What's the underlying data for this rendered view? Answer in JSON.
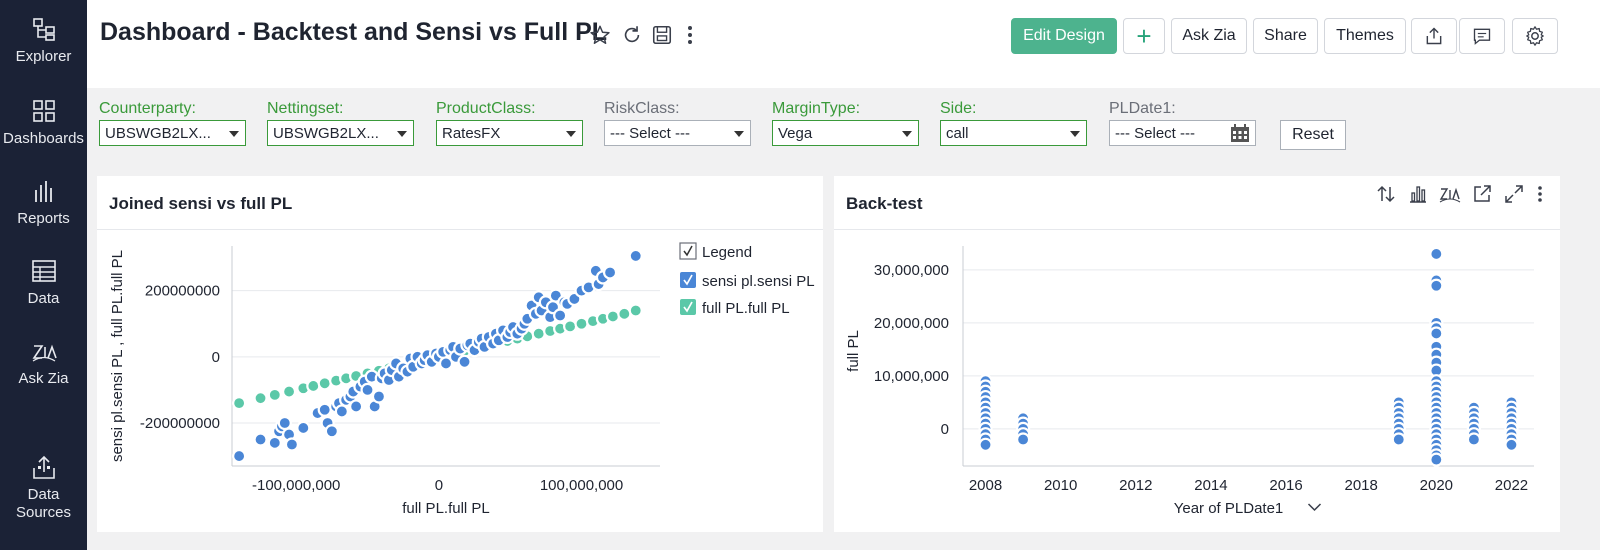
{
  "sidebar": {
    "items": [
      {
        "label": "Explorer",
        "icon": "explorer-icon"
      },
      {
        "label": "Dashboards",
        "icon": "dashboards-icon"
      },
      {
        "label": "Reports",
        "icon": "reports-icon"
      },
      {
        "label": "Data",
        "icon": "data-icon"
      },
      {
        "label": "Ask Zia",
        "icon": "ask-zia-icon"
      },
      {
        "label": "Data Sources",
        "icon": "data-sources-icon"
      }
    ]
  },
  "header": {
    "title": "Dashboard - Backtest and Sensi vs Full PL",
    "buttons": {
      "edit_design": "Edit Design",
      "add": "+",
      "ask_zia": "Ask Zia",
      "share": "Share",
      "themes": "Themes"
    }
  },
  "filters": [
    {
      "label": "Counterparty:",
      "value": "UBSWGB2LX...",
      "active": true
    },
    {
      "label": "Nettingset:",
      "value": "UBSWGB2LX...",
      "active": true
    },
    {
      "label": "ProductClass:",
      "value": "RatesFX",
      "active": true
    },
    {
      "label": "RiskClass:",
      "value": "--- Select ---",
      "active": false
    },
    {
      "label": "MarginType:",
      "value": "Vega",
      "active": true
    },
    {
      "label": "Side:",
      "value": "call",
      "active": true
    },
    {
      "label": "PLDate1:",
      "value": "--- Select ---",
      "active": false
    }
  ],
  "reset_label": "Reset",
  "colors": {
    "sensi": "#4a86d6",
    "full": "#5bc8a8",
    "accent": "#4db38e",
    "sidebar": "#1b2236"
  },
  "panels": {
    "left": {
      "title": "Joined sensi vs full PL"
    },
    "right": {
      "title": "Back-test"
    }
  },
  "chart_data": [
    {
      "type": "scatter",
      "title": "Joined sensi vs full PL",
      "xlabel": "full PL.full PL",
      "ylabel": "sensi pl.sensi PL , full PL.full PL",
      "xlim": [
        -145000000,
        155000000
      ],
      "ylim": [
        -330000000,
        335000000
      ],
      "x_ticks": [
        "-100,000,000",
        "0",
        "100,000,000"
      ],
      "y_ticks": [
        "200000000",
        "0",
        "-200000000"
      ],
      "legend_title": "Legend",
      "series": [
        {
          "name": "sensi pl.sensi PL",
          "color": "#4a86d6",
          "points": [
            [
              -140000000,
              -300000000
            ],
            [
              -125000000,
              -250000000
            ],
            [
              -115000000,
              -260000000
            ],
            [
              -112000000,
              -225000000
            ],
            [
              -110000000,
              -210000000
            ],
            [
              -108000000,
              -200000000
            ],
            [
              -105000000,
              -235000000
            ],
            [
              -103000000,
              -265000000
            ],
            [
              -95000000,
              -215000000
            ],
            [
              -85000000,
              -170000000
            ],
            [
              -80000000,
              -160000000
            ],
            [
              -78000000,
              -200000000
            ],
            [
              -75000000,
              -225000000
            ],
            [
              -72000000,
              -150000000
            ],
            [
              -70000000,
              -140000000
            ],
            [
              -68000000,
              -165000000
            ],
            [
              -65000000,
              -130000000
            ],
            [
              -62000000,
              -120000000
            ],
            [
              -60000000,
              -105000000
            ],
            [
              -58000000,
              -150000000
            ],
            [
              -55000000,
              -90000000
            ],
            [
              -52000000,
              -75000000
            ],
            [
              -50000000,
              -100000000
            ],
            [
              -47000000,
              -60000000
            ],
            [
              -45000000,
              -150000000
            ],
            [
              -42000000,
              -120000000
            ],
            [
              -40000000,
              -65000000
            ],
            [
              -38000000,
              -50000000
            ],
            [
              -35000000,
              -70000000
            ],
            [
              -33000000,
              -40000000
            ],
            [
              -30000000,
              -20000000
            ],
            [
              -28000000,
              -60000000
            ],
            [
              -25000000,
              -35000000
            ],
            [
              -22000000,
              -45000000
            ],
            [
              -20000000,
              -5000000
            ],
            [
              -18000000,
              -30000000
            ],
            [
              -15000000,
              0
            ],
            [
              -12000000,
              -20000000
            ],
            [
              -10000000,
              -10000000
            ],
            [
              -8000000,
              5000000
            ],
            [
              -5000000,
              -15000000
            ],
            [
              -2000000,
              10000000
            ],
            [
              0,
              0
            ],
            [
              3000000,
              15000000
            ],
            [
              5000000,
              -20000000
            ],
            [
              8000000,
              20000000
            ],
            [
              10000000,
              30000000
            ],
            [
              12000000,
              0
            ],
            [
              15000000,
              25000000
            ],
            [
              18000000,
              -15000000
            ],
            [
              20000000,
              35000000
            ],
            [
              22000000,
              40000000
            ],
            [
              25000000,
              20000000
            ],
            [
              28000000,
              45000000
            ],
            [
              30000000,
              55000000
            ],
            [
              32000000,
              30000000
            ],
            [
              35000000,
              60000000
            ],
            [
              38000000,
              40000000
            ],
            [
              40000000,
              70000000
            ],
            [
              42000000,
              50000000
            ],
            [
              45000000,
              80000000
            ],
            [
              48000000,
              60000000
            ],
            [
              50000000,
              75000000
            ],
            [
              52000000,
              90000000
            ],
            [
              55000000,
              70000000
            ],
            [
              58000000,
              85000000
            ],
            [
              60000000,
              100000000
            ],
            [
              62000000,
              115000000
            ],
            [
              65000000,
              155000000
            ],
            [
              68000000,
              130000000
            ],
            [
              70000000,
              180000000
            ],
            [
              72000000,
              140000000
            ],
            [
              75000000,
              165000000
            ],
            [
              78000000,
              120000000
            ],
            [
              80000000,
              150000000
            ],
            [
              82000000,
              185000000
            ],
            [
              85000000,
              125000000
            ],
            [
              88000000,
              165000000
            ],
            [
              90000000,
              160000000
            ],
            [
              95000000,
              175000000
            ],
            [
              100000000,
              200000000
            ],
            [
              105000000,
              210000000
            ],
            [
              110000000,
              260000000
            ],
            [
              112000000,
              220000000
            ],
            [
              115000000,
              240000000
            ],
            [
              120000000,
              255000000
            ],
            [
              138000000,
              305000000
            ]
          ]
        },
        {
          "name": "full PL.full PL",
          "color": "#5bc8a8",
          "points": [
            [
              -140000000,
              -140000000
            ],
            [
              -125000000,
              -125000000
            ],
            [
              -115000000,
              -115000000
            ],
            [
              -105000000,
              -105000000
            ],
            [
              -95000000,
              -95000000
            ],
            [
              -88000000,
              -88000000
            ],
            [
              -80000000,
              -80000000
            ],
            [
              -72000000,
              -72000000
            ],
            [
              -65000000,
              -65000000
            ],
            [
              -58000000,
              -58000000
            ],
            [
              -50000000,
              -50000000
            ],
            [
              -42000000,
              -42000000
            ],
            [
              -35000000,
              -35000000
            ],
            [
              -28000000,
              -28000000
            ],
            [
              -20000000,
              -20000000
            ],
            [
              -12000000,
              -12000000
            ],
            [
              -5000000,
              -5000000
            ],
            [
              2000000,
              2000000
            ],
            [
              10000000,
              10000000
            ],
            [
              18000000,
              18000000
            ],
            [
              25000000,
              25000000
            ],
            [
              32000000,
              32000000
            ],
            [
              40000000,
              40000000
            ],
            [
              48000000,
              48000000
            ],
            [
              55000000,
              55000000
            ],
            [
              62000000,
              62000000
            ],
            [
              70000000,
              70000000
            ],
            [
              78000000,
              78000000
            ],
            [
              85000000,
              85000000
            ],
            [
              92000000,
              92000000
            ],
            [
              100000000,
              100000000
            ],
            [
              108000000,
              108000000
            ],
            [
              115000000,
              115000000
            ],
            [
              122000000,
              122000000
            ],
            [
              130000000,
              130000000
            ],
            [
              138000000,
              140000000
            ]
          ]
        }
      ]
    },
    {
      "type": "scatter",
      "title": "Back-test",
      "xlabel": "Year of PLDate1",
      "ylabel": "full PL",
      "xlim": [
        2007.4,
        2022.6
      ],
      "ylim": [
        -7000000,
        34500000
      ],
      "x_ticks": [
        "2008",
        "2010",
        "2012",
        "2014",
        "2016",
        "2018",
        "2020",
        "2022"
      ],
      "y_ticks": [
        "30,000,000",
        "20,000,000",
        "10,000,000",
        "0"
      ],
      "series": [
        {
          "name": "full PL",
          "color": "#4a86d6",
          "points": [
            [
              2008,
              9000000
            ],
            [
              2008,
              8000000
            ],
            [
              2008,
              7000000
            ],
            [
              2008,
              6000000
            ],
            [
              2008,
              5000000
            ],
            [
              2008,
              4000000
            ],
            [
              2008,
              3000000
            ],
            [
              2008,
              2000000
            ],
            [
              2008,
              1000000
            ],
            [
              2008,
              0
            ],
            [
              2008,
              -1000000
            ],
            [
              2008,
              -2000000
            ],
            [
              2008,
              -3000000
            ],
            [
              2009,
              2000000
            ],
            [
              2009,
              1000000
            ],
            [
              2009,
              0
            ],
            [
              2009,
              -1000000
            ],
            [
              2009,
              -2000000
            ],
            [
              2019,
              5000000
            ],
            [
              2019,
              4000000
            ],
            [
              2019,
              3000000
            ],
            [
              2019,
              2000000
            ],
            [
              2019,
              1000000
            ],
            [
              2019,
              0
            ],
            [
              2019,
              -1000000
            ],
            [
              2019,
              -2000000
            ],
            [
              2020,
              33000000
            ],
            [
              2020,
              28000000
            ],
            [
              2020,
              27000000
            ],
            [
              2020,
              20000000
            ],
            [
              2020,
              19000000
            ],
            [
              2020,
              18000000
            ],
            [
              2020,
              15500000
            ],
            [
              2020,
              14000000
            ],
            [
              2020,
              12500000
            ],
            [
              2020,
              11000000
            ],
            [
              2020,
              9000000
            ],
            [
              2020,
              8000000
            ],
            [
              2020,
              7000000
            ],
            [
              2020,
              6000000
            ],
            [
              2020,
              5000000
            ],
            [
              2020,
              4000000
            ],
            [
              2020,
              3000000
            ],
            [
              2020,
              2000000
            ],
            [
              2020,
              1000000
            ],
            [
              2020,
              0
            ],
            [
              2020,
              -1000000
            ],
            [
              2020,
              -2000000
            ],
            [
              2020,
              -3000000
            ],
            [
              2020,
              -4000000
            ],
            [
              2020,
              -5000000
            ],
            [
              2020,
              -5800000
            ],
            [
              2021,
              4000000
            ],
            [
              2021,
              3000000
            ],
            [
              2021,
              2000000
            ],
            [
              2021,
              1000000
            ],
            [
              2021,
              0
            ],
            [
              2021,
              -1000000
            ],
            [
              2021,
              -2000000
            ],
            [
              2022,
              5000000
            ],
            [
              2022,
              4000000
            ],
            [
              2022,
              3000000
            ],
            [
              2022,
              2000000
            ],
            [
              2022,
              1000000
            ],
            [
              2022,
              0
            ],
            [
              2022,
              -1000000
            ],
            [
              2022,
              -2000000
            ],
            [
              2022,
              -3000000
            ]
          ]
        }
      ]
    }
  ]
}
